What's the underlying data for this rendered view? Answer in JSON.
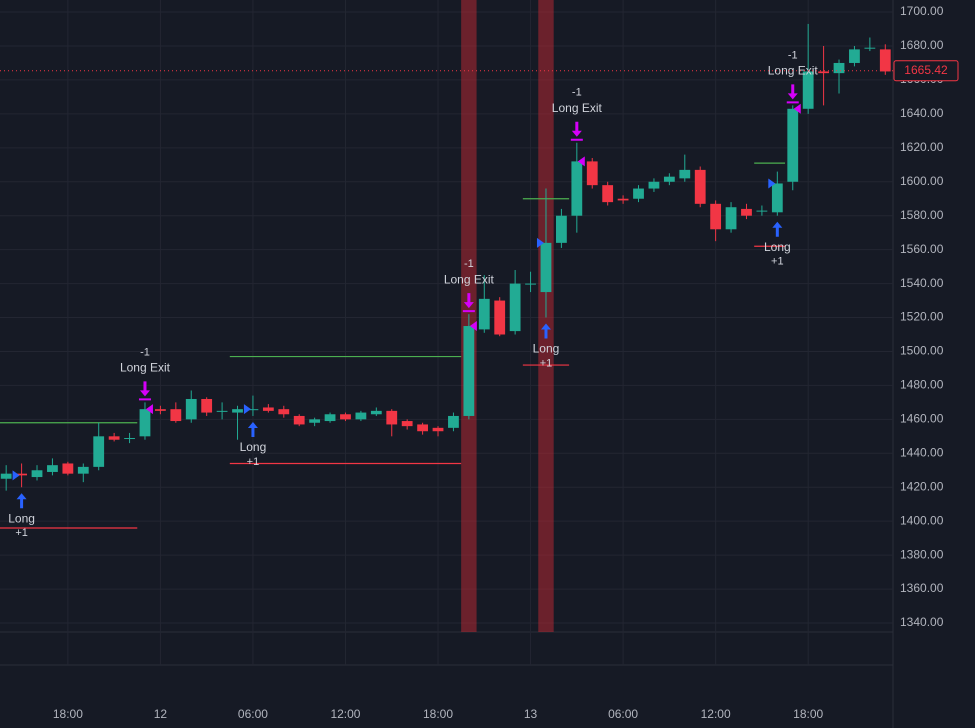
{
  "chart_data": {
    "type": "candlestick",
    "up_color": "#22ab94",
    "down_color": "#f23645",
    "grid": true,
    "x": [
      14,
      15,
      16,
      17,
      18,
      19,
      20,
      21,
      22,
      23,
      24,
      25,
      26,
      27,
      28,
      29,
      30,
      31,
      32,
      33,
      34,
      35,
      36,
      37,
      38,
      39,
      40,
      41,
      42,
      43,
      44,
      45,
      46,
      47,
      48,
      49,
      50,
      51,
      52,
      53,
      54,
      55,
      56,
      57,
      58,
      59,
      60,
      61,
      62,
      63,
      64,
      65,
      66,
      67,
      68,
      69,
      70,
      71
    ],
    "open": [
      1425,
      1428,
      1426,
      1429,
      1434,
      1428,
      1432,
      1450,
      1449,
      1450,
      1466,
      1466,
      1460,
      1472,
      1465,
      1464,
      1466,
      1467,
      1466,
      1462,
      1458,
      1459,
      1463,
      1460,
      1463,
      1465,
      1459,
      1457,
      1455,
      1455,
      1462,
      1513,
      1530,
      1512,
      1540,
      1535,
      1564,
      1580,
      1612,
      1598,
      1590,
      1590,
      1596,
      1600,
      1602,
      1607,
      1587,
      1572,
      1584,
      1583,
      1582,
      1600,
      1643,
      1665,
      1664,
      1670,
      1679,
      1678
    ],
    "high": [
      1433,
      1434,
      1433,
      1437,
      1435,
      1434,
      1458,
      1452,
      1452,
      1470,
      1468,
      1470,
      1477,
      1473,
      1470,
      1468,
      1474,
      1469,
      1468,
      1463,
      1461,
      1464,
      1464,
      1465,
      1467,
      1466,
      1460,
      1458,
      1456,
      1464,
      1522,
      1545,
      1532,
      1548,
      1547,
      1596,
      1584,
      1623,
      1614,
      1600,
      1592,
      1598,
      1602,
      1605,
      1616,
      1609,
      1589,
      1588,
      1587,
      1586,
      1606,
      1645,
      1693,
      1680,
      1672,
      1680,
      1685,
      1681
    ],
    "low": [
      1418,
      1420,
      1424,
      1427,
      1427,
      1423,
      1430,
      1447,
      1446,
      1448,
      1463,
      1458,
      1458,
      1462,
      1460,
      1448,
      1462,
      1464,
      1461,
      1456,
      1456,
      1458,
      1459,
      1459,
      1462,
      1450,
      1454,
      1451,
      1450,
      1453,
      1460,
      1511,
      1509,
      1510,
      1535,
      1520,
      1561,
      1570,
      1596,
      1586,
      1587,
      1588,
      1594,
      1598,
      1600,
      1585,
      1565,
      1570,
      1578,
      1580,
      1580,
      1595,
      1640,
      1645,
      1652,
      1668,
      1677,
      1663
    ],
    "close": [
      1428,
      1427,
      1430,
      1433,
      1428,
      1432,
      1450,
      1448,
      1449,
      1466,
      1465,
      1459,
      1472,
      1464,
      1465,
      1466,
      1466,
      1465,
      1463,
      1457,
      1460,
      1463,
      1460,
      1464,
      1465,
      1457,
      1456,
      1453,
      1453,
      1462,
      1515,
      1531,
      1510,
      1540,
      1540,
      1564,
      1580,
      1612,
      1598,
      1588,
      1589,
      1596,
      1600,
      1603,
      1607,
      1587,
      1572,
      1585,
      1580,
      1583,
      1599,
      1643,
      1665,
      1664,
      1670,
      1678,
      1679,
      1665
    ],
    "xlim": [
      13.6,
      71.5
    ],
    "xticks": [
      {
        "value": 18,
        "label": "18:00"
      },
      {
        "value": 24,
        "label": "12"
      },
      {
        "value": 30,
        "label": "06:00"
      },
      {
        "value": 36,
        "label": "12:00"
      },
      {
        "value": 42,
        "label": "18:00"
      },
      {
        "value": 48,
        "label": "13"
      },
      {
        "value": 54,
        "label": "06:00"
      },
      {
        "value": 60,
        "label": "12:00"
      },
      {
        "value": 66,
        "label": "18:00"
      }
    ],
    "ylim": [
      1334.7,
      1707.1
    ],
    "yticks": [
      {
        "value": 1340,
        "label": "1340.00"
      },
      {
        "value": 1360,
        "label": "1360.00"
      },
      {
        "value": 1380,
        "label": "1380.00"
      },
      {
        "value": 1400,
        "label": "1400.00"
      },
      {
        "value": 1420,
        "label": "1420.00"
      },
      {
        "value": 1440,
        "label": "1440.00"
      },
      {
        "value": 1460,
        "label": "1460.00"
      },
      {
        "value": 1480,
        "label": "1480.00"
      },
      {
        "value": 1500,
        "label": "1500.00"
      },
      {
        "value": 1520,
        "label": "1520.00"
      },
      {
        "value": 1540,
        "label": "1540.00"
      },
      {
        "value": 1560,
        "label": "1560.00"
      },
      {
        "value": 1580,
        "label": "1580.00"
      },
      {
        "value": 1600,
        "label": "1600.00"
      },
      {
        "value": 1620,
        "label": "1620.00"
      },
      {
        "value": 1640,
        "label": "1640.00"
      },
      {
        "value": 1660,
        "label": "1660.00"
      },
      {
        "value": 1680,
        "label": "1680.00"
      },
      {
        "value": 1700,
        "label": "1700.00"
      }
    ],
    "last_price": 1665.42,
    "highlight_x": [
      44,
      49
    ],
    "levels": [
      {
        "value": 1458,
        "from": 14,
        "to": 22,
        "color": "#4caf50"
      },
      {
        "value": 1396,
        "from": 14,
        "to": 22,
        "color": "#f23645"
      },
      {
        "value": 1497,
        "from": 29,
        "to": 43,
        "color": "#4caf50"
      },
      {
        "value": 1434,
        "from": 29,
        "to": 43,
        "color": "#f23645"
      },
      {
        "value": 1590,
        "from": 48,
        "to": 50,
        "color": "#4caf50"
      },
      {
        "value": 1492,
        "from": 48,
        "to": 50,
        "color": "#f23645"
      },
      {
        "value": 1611,
        "from": 63,
        "to": 64,
        "color": "#4caf50"
      },
      {
        "value": 1562,
        "from": 63,
        "to": 64,
        "color": "#f23645"
      }
    ],
    "signals": [
      {
        "label": "Long",
        "qty": "+1",
        "x": 15,
        "side": "long"
      },
      {
        "label": "Long Exit",
        "qty": "-1",
        "x": 23,
        "side": "exit"
      },
      {
        "label": "Long",
        "qty": "+1",
        "x": 30,
        "side": "long"
      },
      {
        "label": "Long Exit",
        "qty": "-1",
        "x": 44,
        "side": "exit"
      },
      {
        "label": "Long",
        "qty": "+1",
        "x": 49,
        "side": "long"
      },
      {
        "label": "Long Exit",
        "qty": "-1",
        "x": 51,
        "side": "exit"
      },
      {
        "label": "Long",
        "qty": "+1",
        "x": 64,
        "side": "long"
      },
      {
        "label": "Long Exit",
        "qty": "-1",
        "x": 65,
        "side": "exit"
      }
    ]
  }
}
